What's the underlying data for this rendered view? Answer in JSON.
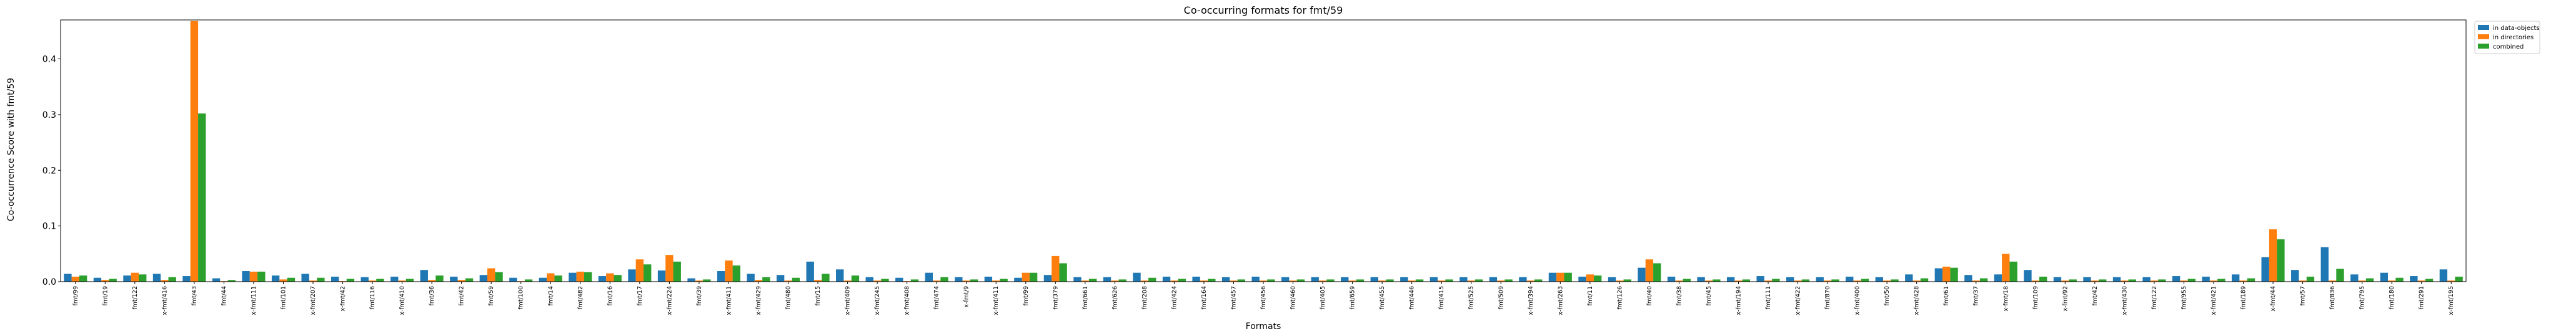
{
  "chart_data": {
    "type": "bar",
    "title": "Co-occurring formats for fmt/59",
    "xlabel": "Formats",
    "ylabel": "Co-occurrence Score with fmt/59",
    "ylim": [
      0,
      0.47
    ],
    "yticks": [
      0.0,
      0.1,
      0.2,
      0.3,
      0.4
    ],
    "ytick_labels": [
      "0.0",
      "0.1",
      "0.2",
      "0.3",
      "0.4"
    ],
    "legend_position": "outside-top-right",
    "grid": false,
    "series": [
      {
        "name": "in data-objects",
        "color": "#1f77b4"
      },
      {
        "name": "in directories",
        "color": "#ff7f0e"
      },
      {
        "name": "combined",
        "color": "#2ca02c"
      }
    ],
    "categories": [
      "fmt/99",
      "fmt/19",
      "fmt/122",
      "x-fmt/416",
      "fmt/43",
      "fmt/44",
      "x-fmt/111",
      "fmt/101",
      "x-fmt/207",
      "x-fmt/42",
      "fmt/116",
      "x-fmt/410",
      "fmt/36",
      "fmt/42",
      "fmt/59",
      "fmt/100",
      "fmt/14",
      "fmt/482",
      "fmt/16",
      "fmt/17",
      "x-fmt/224",
      "fmt/39",
      "x-fmt/411",
      "x-fmt/429",
      "fmt/480",
      "fmt/15",
      "x-fmt/409",
      "x-fmt/245",
      "x-fmt/408",
      "fmt/474",
      "x-fmt/9",
      "x-fmt/411",
      "fmt/99",
      "fmt/379",
      "fmt/661",
      "fmt/626",
      "fmt/208",
      "fmt/424",
      "fmt/164",
      "fmt/457",
      "fmt/456",
      "fmt/460",
      "fmt/405",
      "fmt/659",
      "fmt/455",
      "fmt/446",
      "fmt/415",
      "fmt/525",
      "fmt/509",
      "x-fmt/394",
      "x-fmt/263",
      "fmt/11",
      "fmt/126",
      "fmt/40",
      "fmt/38",
      "fmt/45",
      "x-fmt/194",
      "fmt/111",
      "x-fmt/422",
      "fmt/870",
      "x-fmt/400",
      "fmt/50",
      "x-fmt/428",
      "fmt/61",
      "fmt/37",
      "x-fmt/18",
      "fmt/109",
      "x-fmt/92",
      "fmt/42",
      "x-fmt/430",
      "fmt/122",
      "fmt/955",
      "x-fmt/421",
      "fmt/189",
      "x-fmt/44",
      "fmt/57",
      "fmt/836",
      "fmt/795",
      "fmt/180",
      "fmt/291",
      "x-fmt/195"
    ],
    "data": [
      [
        0.014,
        0.009,
        0.011
      ],
      [
        0.007,
        0.003,
        0.005
      ],
      [
        0.011,
        0.016,
        0.013
      ],
      [
        0.014,
        0.003,
        0.008
      ],
      [
        0.01,
        0.468,
        0.302
      ],
      [
        0.006,
        0.001,
        0.003
      ],
      [
        0.019,
        0.018,
        0.018
      ],
      [
        0.011,
        0.004,
        0.007
      ],
      [
        0.014,
        0.002,
        0.007
      ],
      [
        0.009,
        0.001,
        0.005
      ],
      [
        0.008,
        0.002,
        0.005
      ],
      [
        0.009,
        0.002,
        0.005
      ],
      [
        0.021,
        0.003,
        0.011
      ],
      [
        0.009,
        0.003,
        0.006
      ],
      [
        0.012,
        0.024,
        0.017
      ],
      [
        0.007,
        0.001,
        0.004
      ],
      [
        0.007,
        0.015,
        0.011
      ],
      [
        0.016,
        0.018,
        0.017
      ],
      [
        0.01,
        0.015,
        0.012
      ],
      [
        0.022,
        0.04,
        0.031
      ],
      [
        0.02,
        0.048,
        0.036
      ],
      [
        0.006,
        0.002,
        0.004
      ],
      [
        0.019,
        0.038,
        0.029
      ],
      [
        0.014,
        0.003,
        0.008
      ],
      [
        0.012,
        0.002,
        0.007
      ],
      [
        0.036,
        0.003,
        0.014
      ],
      [
        0.022,
        0.002,
        0.011
      ],
      [
        0.008,
        0.002,
        0.005
      ],
      [
        0.007,
        0.001,
        0.004
      ],
      [
        0.016,
        0.002,
        0.008
      ],
      [
        0.008,
        0.002,
        0.004
      ],
      [
        0.009,
        0.002,
        0.005
      ],
      [
        0.007,
        0.016,
        0.016
      ],
      [
        0.012,
        0.046,
        0.033
      ],
      [
        0.008,
        0.002,
        0.005
      ],
      [
        0.008,
        0.002,
        0.004
      ],
      [
        0.016,
        0.002,
        0.007
      ],
      [
        0.009,
        0.002,
        0.005
      ],
      [
        0.009,
        0.002,
        0.005
      ],
      [
        0.008,
        0.002,
        0.004
      ],
      [
        0.009,
        0.002,
        0.004
      ],
      [
        0.008,
        0.002,
        0.004
      ],
      [
        0.008,
        0.002,
        0.004
      ],
      [
        0.008,
        0.002,
        0.004
      ],
      [
        0.008,
        0.002,
        0.004
      ],
      [
        0.008,
        0.002,
        0.004
      ],
      [
        0.008,
        0.002,
        0.004
      ],
      [
        0.008,
        0.002,
        0.004
      ],
      [
        0.008,
        0.002,
        0.004
      ],
      [
        0.008,
        0.002,
        0.004
      ],
      [
        0.016,
        0.016,
        0.016
      ],
      [
        0.009,
        0.013,
        0.011
      ],
      [
        0.008,
        0.002,
        0.004
      ],
      [
        0.025,
        0.04,
        0.033
      ],
      [
        0.009,
        0.002,
        0.005
      ],
      [
        0.008,
        0.002,
        0.004
      ],
      [
        0.008,
        0.002,
        0.004
      ],
      [
        0.01,
        0.002,
        0.005
      ],
      [
        0.008,
        0.002,
        0.004
      ],
      [
        0.008,
        0.002,
        0.004
      ],
      [
        0.009,
        0.002,
        0.005
      ],
      [
        0.008,
        0.002,
        0.004
      ],
      [
        0.013,
        0.002,
        0.006
      ],
      [
        0.024,
        0.027,
        0.025
      ],
      [
        0.012,
        0.002,
        0.006
      ],
      [
        0.013,
        0.05,
        0.036
      ],
      [
        0.021,
        0.002,
        0.009
      ],
      [
        0.008,
        0.002,
        0.004
      ],
      [
        0.008,
        0.002,
        0.004
      ],
      [
        0.008,
        0.002,
        0.004
      ],
      [
        0.008,
        0.002,
        0.004
      ],
      [
        0.01,
        0.002,
        0.005
      ],
      [
        0.009,
        0.002,
        0.005
      ],
      [
        0.013,
        0.002,
        0.006
      ],
      [
        0.044,
        0.094,
        0.076
      ],
      [
        0.021,
        0.002,
        0.009
      ],
      [
        0.062,
        0.002,
        0.023
      ],
      [
        0.013,
        0.002,
        0.006
      ],
      [
        0.016,
        0.002,
        0.007
      ],
      [
        0.01,
        0.002,
        0.005
      ],
      [
        0.022,
        0.002,
        0.009
      ]
    ]
  }
}
